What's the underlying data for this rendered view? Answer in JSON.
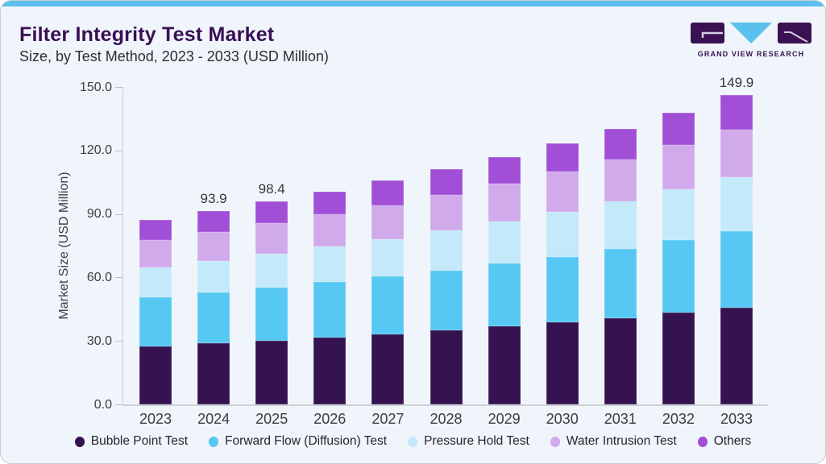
{
  "header": {
    "title": "Filter Integrity Test Market",
    "subtitle": "Size, by Test Method, 2023 - 2033 (USD Million)"
  },
  "logo": {
    "brand": "GRAND VIEW RESEARCH"
  },
  "chart_data": {
    "type": "bar",
    "stacked": true,
    "title": "Filter Integrity Test Market Size, by Test Method, 2023 - 2033 (USD Million)",
    "xlabel": "",
    "ylabel": "Market Size (USD Million)",
    "ylim": [
      0,
      150
    ],
    "yticks": [
      "0.0",
      "30.0",
      "60.0",
      "90.0",
      "120.0",
      "150.0"
    ],
    "grid": false,
    "legend_position": "bottom",
    "categories": [
      "2023",
      "2024",
      "2025",
      "2026",
      "2027",
      "2028",
      "2029",
      "2030",
      "2031",
      "2032",
      "2033"
    ],
    "series": [
      {
        "name": "Bubble Point Test",
        "color": "#351250",
        "values": [
          28.1,
          29.5,
          30.9,
          32.4,
          34.1,
          35.8,
          37.7,
          39.7,
          41.9,
          44.4,
          47.0
        ]
      },
      {
        "name": "Forward Flow (Diffusion) Test",
        "color": "#57c8f3",
        "values": [
          23.8,
          24.8,
          25.8,
          26.9,
          27.9,
          29.2,
          30.5,
          31.9,
          33.4,
          35.1,
          36.9
        ]
      },
      {
        "name": "Pressure Hold Test",
        "color": "#c3e9fa",
        "values": [
          14.5,
          15.4,
          16.2,
          17.2,
          18.2,
          19.3,
          20.4,
          21.7,
          23.1,
          24.6,
          26.3
        ]
      },
      {
        "name": "Water Intrusion Test",
        "color": "#d0aaeb",
        "values": [
          13.3,
          14.0,
          14.8,
          15.5,
          16.4,
          17.3,
          18.3,
          19.4,
          20.5,
          21.7,
          23.1
        ]
      },
      {
        "name": "Others",
        "color": "#a14fd6",
        "values": [
          9.7,
          10.2,
          10.7,
          11.3,
          11.9,
          12.5,
          13.2,
          13.9,
          14.8,
          15.7,
          16.6
        ]
      }
    ],
    "value_labels": {
      "2024": "93.9",
      "2025": "98.4",
      "2033": "149.9"
    }
  },
  "colors": {
    "accent_bar": "#5bc0ee",
    "title": "#3a0f55",
    "background": "#eff5fa",
    "axis_text": "#3f4046"
  }
}
